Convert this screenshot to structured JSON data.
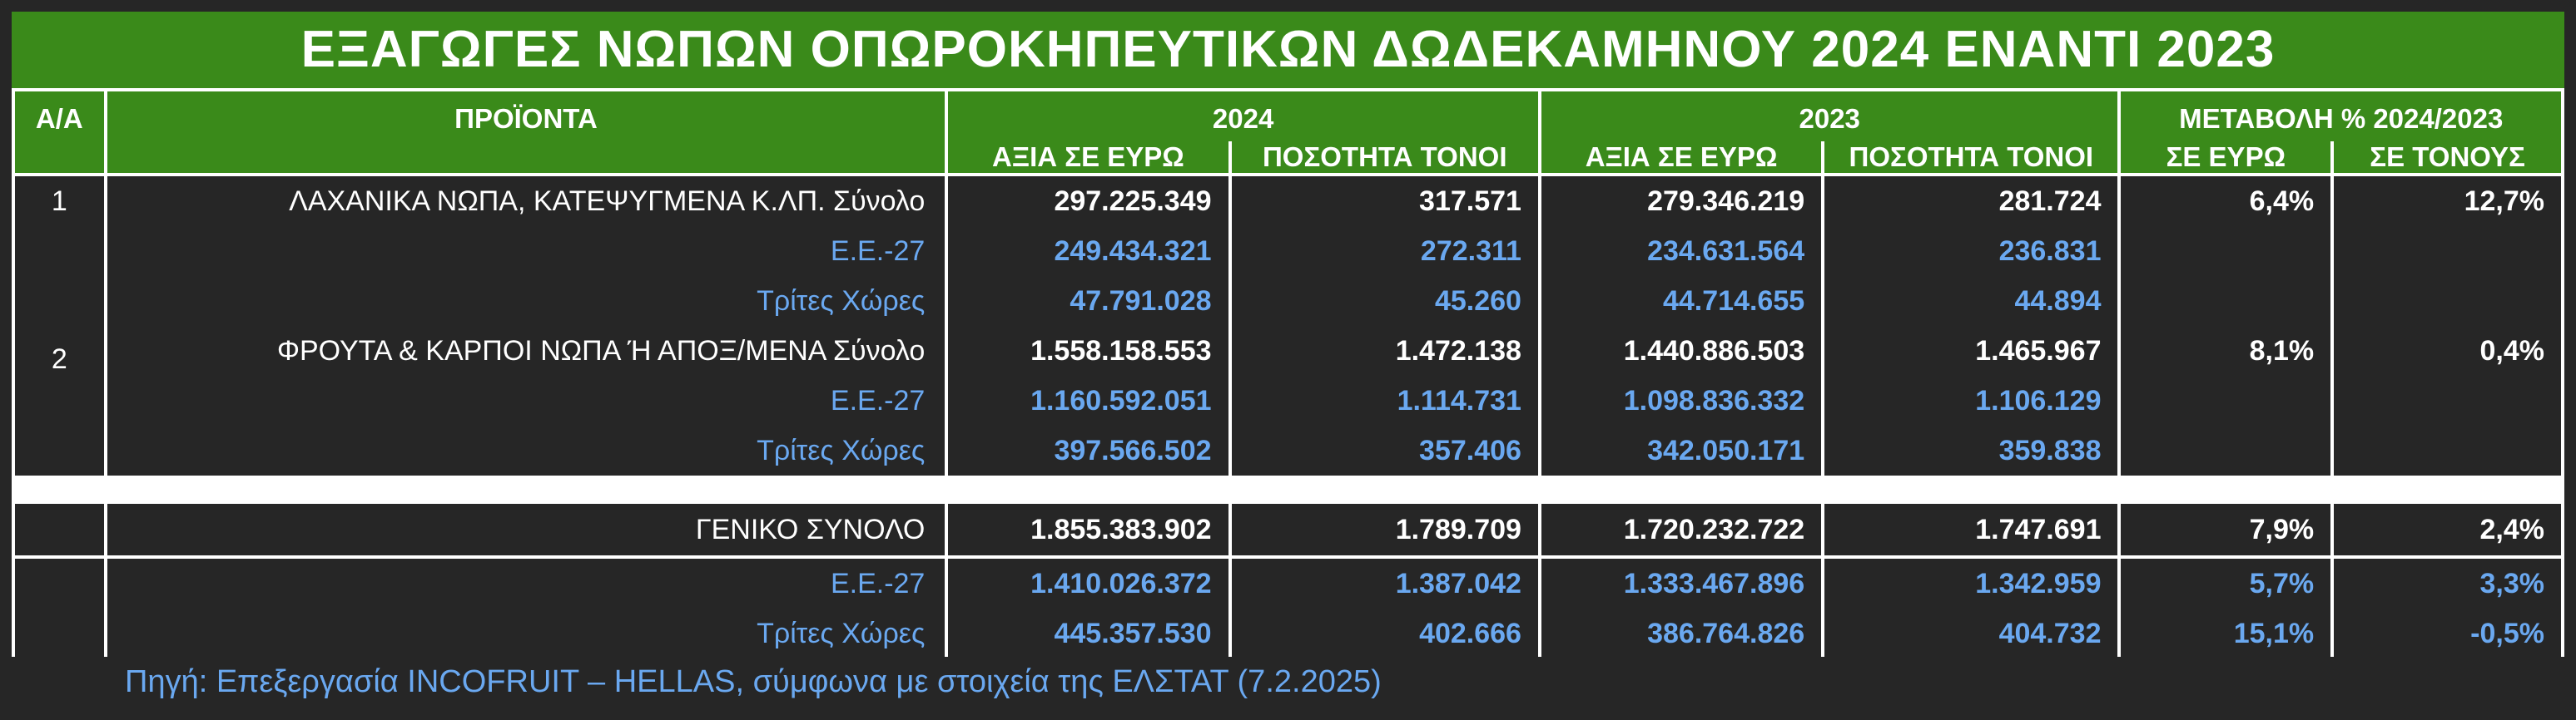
{
  "title": "ΕΞΑΓΩΓΕΣ ΝΩΠΩΝ ΟΠΩΡΟΚΗΠΕΥΤΙΚΩΝ ΔΩΔΕΚΑΜΗΝΟΥ 2024 ΕΝΑΝΤΙ 2023",
  "header": {
    "aa": "Α/Α",
    "products": "ΠΡΟΪΟΝΤΑ",
    "year1": "2024",
    "year2": "2023",
    "change": "ΜΕΤΑΒΟΛΗ % 2024/2023",
    "value_eur": "ΑΞΙΑ ΣΕ ΕΥΡΩ",
    "qty_tons": "ΠΟΣΟΤΗΤΑ ΤΟΝΟΙ",
    "in_eur": "ΣΕ ΕΥΡΩ",
    "in_tons": "ΣΕ ΤΟΝΟΥΣ"
  },
  "groups": [
    {
      "num": "1",
      "rows": [
        {
          "label": "ΛΑΧΑΝΙΚΑ ΝΩΠΑ, ΚΑΤΕΨΥΓΜΕΝΑ Κ.ΛΠ. Σύνολο",
          "v24": "297.225.349",
          "t24": "317.571",
          "v23": "279.346.219",
          "t23": "281.724",
          "pe": "6,4%",
          "pt": "12,7%"
        },
        {
          "label": "Ε.Ε.-27",
          "v24": "249.434.321",
          "t24": "272.311",
          "v23": "234.631.564",
          "t23": "236.831",
          "pe": "",
          "pt": ""
        },
        {
          "label": "Τρίτες Χώρες",
          "v24": "47.791.028",
          "t24": "45.260",
          "v23": "44.714.655",
          "t23": "44.894",
          "pe": "",
          "pt": ""
        }
      ]
    },
    {
      "num": "2",
      "rows": [
        {
          "label": "ΦΡΟΥΤΑ & ΚΑΡΠΟΙ ΝΩΠΑ Ή ΑΠΟΞ/ΜΕΝΑ Σύνολο",
          "v24": "1.558.158.553",
          "t24": "1.472.138",
          "v23": "1.440.886.503",
          "t23": "1.465.967",
          "pe": "8,1%",
          "pt": "0,4%"
        },
        {
          "label": "Ε.Ε.-27",
          "v24": "1.160.592.051",
          "t24": "1.114.731",
          "v23": "1.098.836.332",
          "t23": "1.106.129",
          "pe": "",
          "pt": ""
        },
        {
          "label": "Τρίτες Χώρες",
          "v24": "397.566.502",
          "t24": "357.406",
          "v23": "342.050.171",
          "t23": "359.838",
          "pe": "",
          "pt": ""
        }
      ]
    }
  ],
  "total": {
    "label": "ΓΕΝΙΚΟ ΣΥΝΟΛΟ",
    "v24": "1.855.383.902",
    "t24": "1.789.709",
    "v23": "1.720.232.722",
    "t23": "1.747.691",
    "pe": "7,9%",
    "pt": "2,4%"
  },
  "breakdown": [
    {
      "label": "Ε.Ε.-27",
      "v24": "1.410.026.372",
      "t24": "1.387.042",
      "v23": "1.333.467.896",
      "t23": "1.342.959",
      "pe": "5,7%",
      "pt": "3,3%"
    },
    {
      "label": "Τρίτες Χώρες",
      "v24": "445.357.530",
      "t24": "402.666",
      "v23": "386.764.826",
      "t23": "404.732",
      "pe": "15,1%",
      "pt": "-0,5%"
    }
  ],
  "source": "Πηγή: Επεξεργασία INCOFRUIT – HELLAS, σύμφωνα με στοιχεία της ΕΛΣΤΑΤ (7.2.2025)",
  "colors": {
    "header_green": "#3a8a1a",
    "cell_dark": "#262626",
    "text_white": "#ffffff",
    "text_blue": "#6aa8f0"
  }
}
